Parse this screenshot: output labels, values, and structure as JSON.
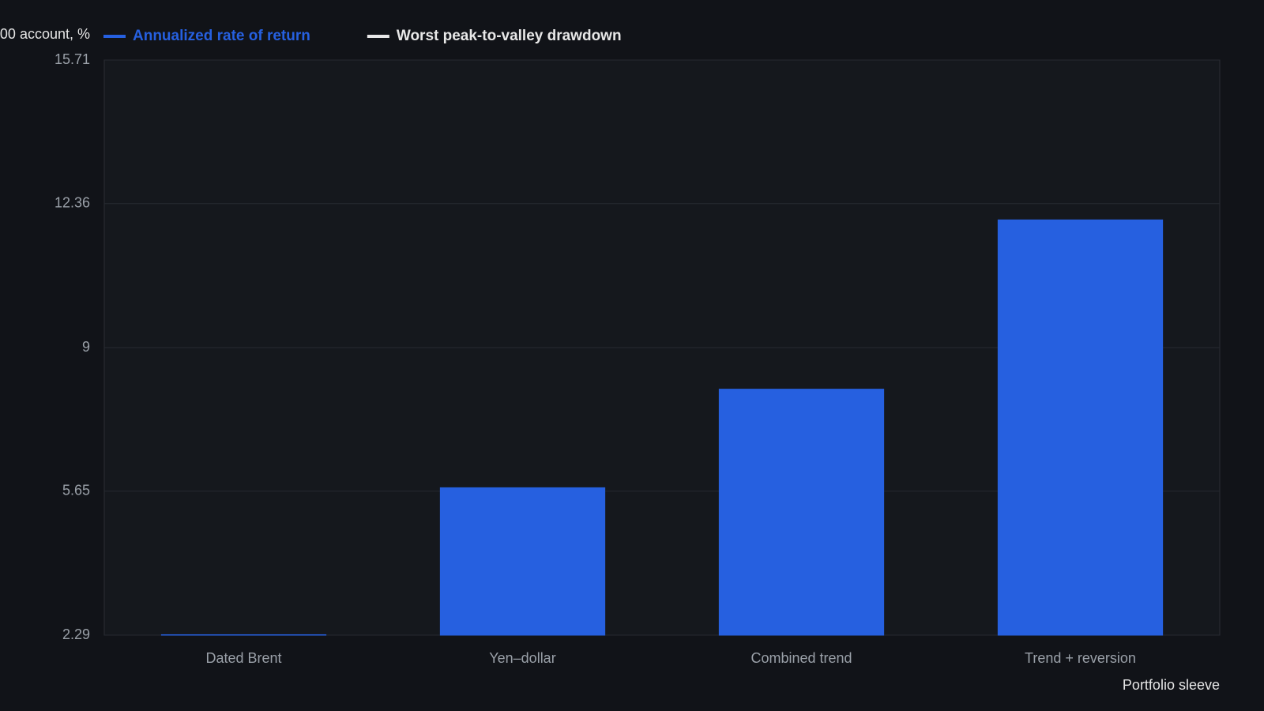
{
  "chart_data": {
    "type": "bar",
    "y_label": "00 account, %",
    "x_label": "Portfolio sleeve",
    "categories": [
      "Dated Brent",
      "Yen–dollar",
      "Combined trend",
      "Trend + reversion"
    ],
    "series": [
      {
        "name": "Annualized rate of return",
        "color": "#2660e0",
        "values": [
          2.3,
          5.73,
          8.03,
          11.98
        ]
      },
      {
        "name": "Worst peak-to-valley drawdown",
        "color": "#e8e8e8",
        "values": [
          null,
          null,
          null,
          null
        ]
      }
    ],
    "ylim": [
      2.29,
      15.71
    ],
    "yticks": [
      2.29,
      5.65,
      9,
      12.36,
      15.71
    ],
    "grid": true
  }
}
